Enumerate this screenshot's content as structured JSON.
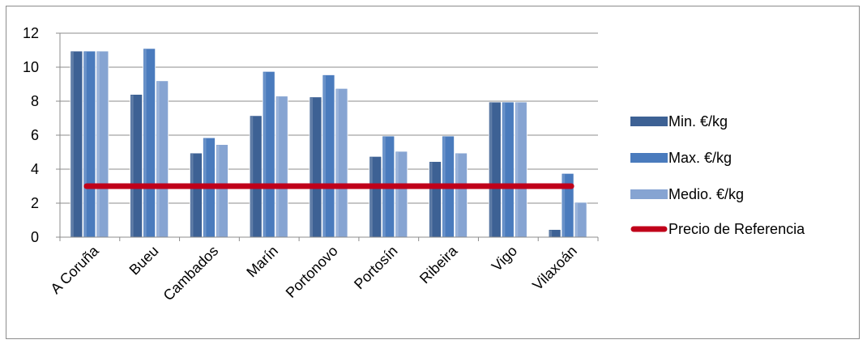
{
  "chart_data": {
    "type": "bar",
    "categories": [
      "A Coruña",
      "Bueu",
      "Cambados",
      "Marín",
      "Portonovo",
      "Portosín",
      "Ribeira",
      "Vigo",
      "Vilaxoán"
    ],
    "series": [
      {
        "name": "Min. €/kg",
        "color": "#3d6194",
        "values": [
          10.95,
          8.4,
          4.95,
          7.15,
          8.25,
          4.75,
          4.45,
          7.95,
          0.45
        ]
      },
      {
        "name": "Max. €/kg",
        "color": "#4a7bbd",
        "values": [
          10.95,
          11.1,
          5.85,
          9.75,
          9.55,
          5.95,
          5.95,
          7.95,
          3.75
        ]
      },
      {
        "name": "Medio. €/kg",
        "color": "#86a4d2",
        "values": [
          10.95,
          9.2,
          5.45,
          8.3,
          8.75,
          5.05,
          4.95,
          7.95,
          2.05
        ]
      }
    ],
    "reference_line": {
      "name": "Precio de Referencia",
      "value": 3,
      "color": "#c0001a"
    },
    "y_ticks": [
      "0",
      "2",
      "4",
      "6",
      "8",
      "10",
      "12"
    ],
    "ylim": [
      0,
      12
    ],
    "grid": true,
    "legend_position": "right"
  }
}
